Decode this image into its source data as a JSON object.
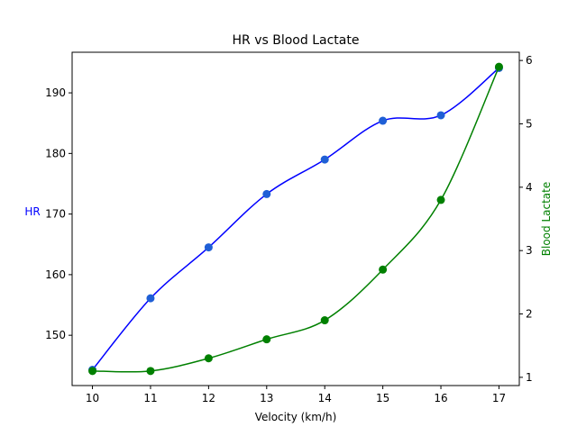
{
  "chart_data": {
    "type": "line",
    "title": "HR vs Blood Lactate",
    "xlabel": "Velocity (km/h)",
    "ylabel_left": "HR",
    "ylabel_right": "Blood Lactate",
    "x": [
      10,
      11,
      12,
      13,
      14,
      15,
      16,
      17
    ],
    "xlim": [
      9.65,
      17.35
    ],
    "xticks": [
      "10",
      "11",
      "12",
      "13",
      "14",
      "15",
      "16",
      "17"
    ],
    "ylim_left": [
      141.7,
      196.7
    ],
    "yticks_left": [
      "150",
      "160",
      "170",
      "180",
      "190"
    ],
    "ylim_right": [
      0.87,
      6.13
    ],
    "yticks_right": [
      "1",
      "2",
      "3",
      "4",
      "5",
      "6"
    ],
    "grid": false,
    "series": [
      {
        "axis": "left",
        "values": [
          144.3,
          156.1,
          164.5,
          173.3,
          179.0,
          185.4,
          186.3,
          194.1
        ],
        "line_color": "#0000ff",
        "marker_color": "#1f5fd6"
      },
      {
        "axis": "right",
        "values": [
          1.1,
          1.1,
          1.3,
          1.6,
          1.9,
          2.7,
          3.8,
          5.9
        ],
        "line_color": "#008000",
        "marker_color": "#008000"
      }
    ],
    "colors": {
      "left_label": "#0000ff",
      "right_label": "#008000"
    }
  }
}
